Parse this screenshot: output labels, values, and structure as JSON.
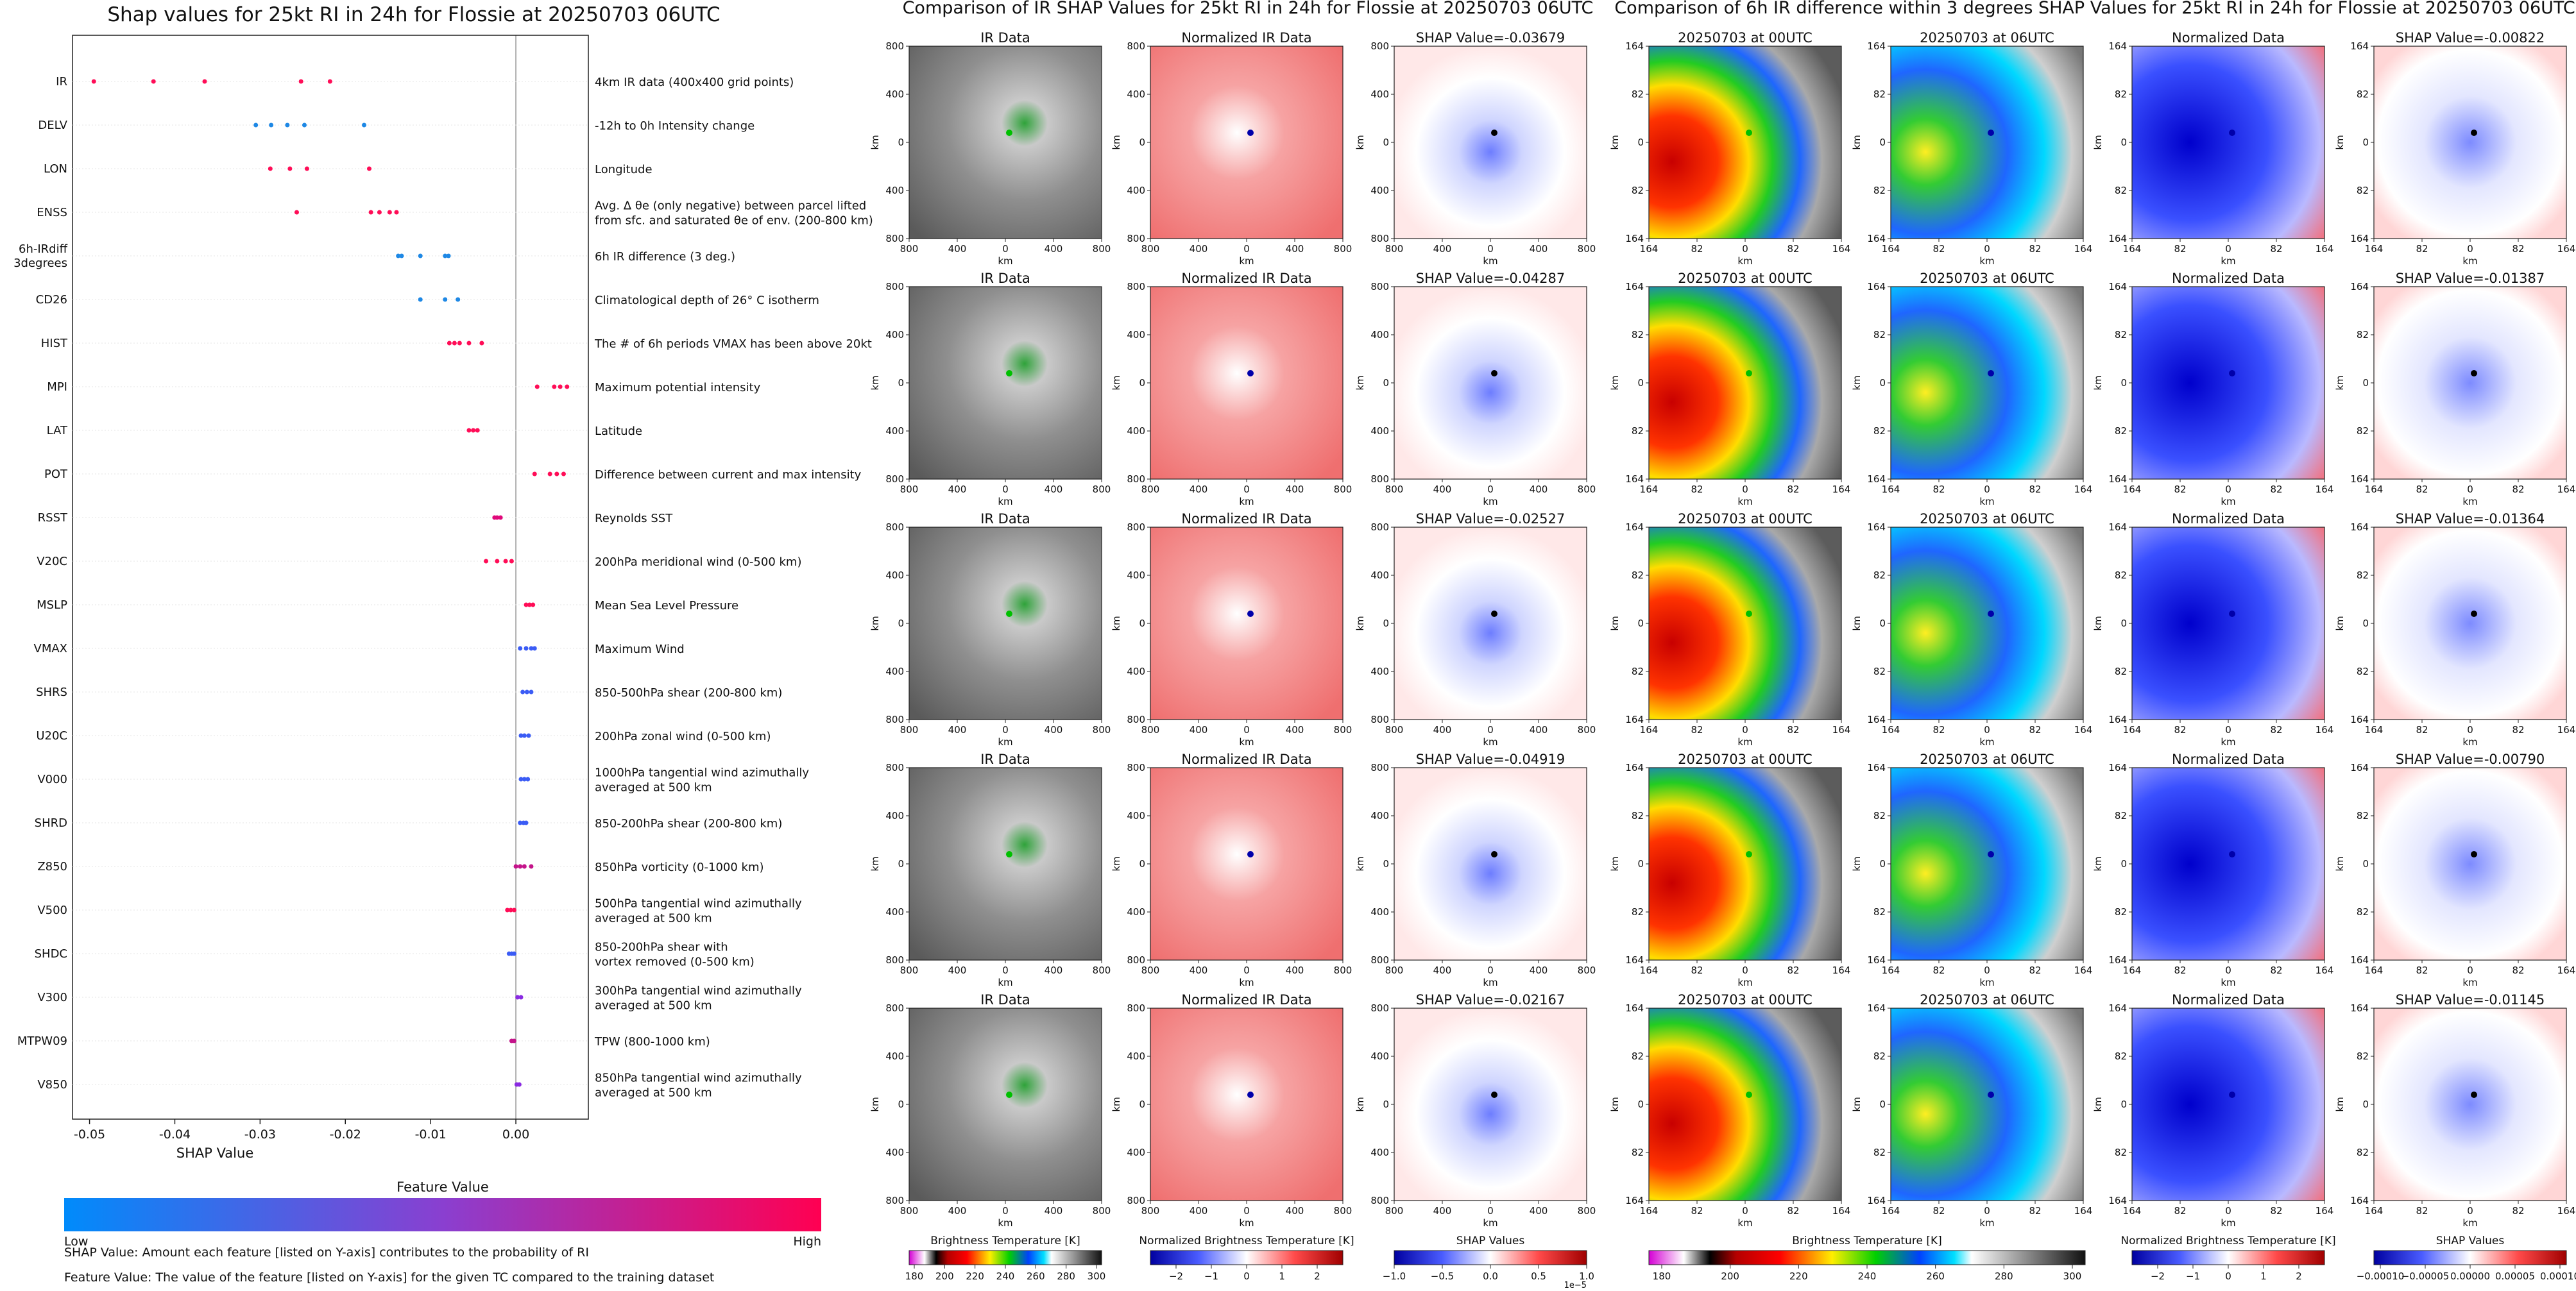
{
  "shap_panel": {
    "title": "Shap values for 25kt RI in 24h for Flossie at 20250703 06UTC",
    "xlabel": "SHAP Value",
    "colorbar": {
      "title": "Feature Value",
      "low": "Low",
      "high": "High"
    },
    "footnotes": [
      "SHAP Value: Amount each feature [listed on Y-axis] contributes to the probability of RI",
      "Feature Value: The value of the feature [listed on Y-axis] for the given TC compared to the training dataset"
    ]
  },
  "chart_data": [
    {
      "type": "scatter",
      "title": "Shap values for 25kt RI in 24h for Flossie at 20250703 06UTC",
      "xlabel": "SHAP Value",
      "xlim": [
        -0.052,
        0.0085
      ],
      "xticks": [
        "-0.05",
        "-0.04",
        "-0.03",
        "-0.02",
        "-0.01",
        "0.00"
      ],
      "xtick_values": [
        -0.05,
        -0.04,
        -0.03,
        -0.02,
        -0.01,
        0.0
      ],
      "colors": {
        "low": "#1e88e5",
        "high": "#ff0d57"
      },
      "features": [
        {
          "name": "IR",
          "desc": "4km IR data (400x400 grid points)",
          "vals": [
            -0.0495,
            -0.0425,
            -0.0365,
            -0.0252,
            -0.0218
          ],
          "color": "#ff0d57"
        },
        {
          "name": "DELV",
          "desc": "-12h to 0h Intensity change",
          "vals": [
            -0.0305,
            -0.0287,
            -0.0268,
            -0.0248,
            -0.0178
          ],
          "color": "#1e88e5"
        },
        {
          "name": "LON",
          "desc": "Longitude",
          "vals": [
            -0.0288,
            -0.0265,
            -0.0245,
            -0.0172
          ],
          "color": "#ff0d57"
        },
        {
          "name": "ENSS",
          "desc": "Avg. Δ θe (only negative) between parcel lifted\nfrom sfc. and saturated θe of env. (200-800 km)",
          "vals": [
            -0.0257,
            -0.017,
            -0.016,
            -0.0148,
            -0.014
          ],
          "color": "#ff0d57"
        },
        {
          "name": "6h-IRdiff\n3degrees",
          "desc": "6h IR difference (3 deg.)",
          "vals": [
            -0.0138,
            -0.0134,
            -0.0112,
            -0.0083,
            -0.0079
          ],
          "color": "#1e88e5"
        },
        {
          "name": "CD26",
          "desc": "Climatological depth of 26° C isotherm",
          "vals": [
            -0.0112,
            -0.0083,
            -0.0068
          ],
          "color": "#1e88e5"
        },
        {
          "name": "HIST",
          "desc": "The # of 6h periods VMAX has been above 20kt",
          "vals": [
            -0.0078,
            -0.0072,
            -0.0066,
            -0.0055,
            -0.004
          ],
          "color": "#ff0d57"
        },
        {
          "name": "MPI",
          "desc": "Maximum potential intensity",
          "vals": [
            0.0025,
            0.0045,
            0.0052,
            0.006
          ],
          "color": "#ff0d57"
        },
        {
          "name": "LAT",
          "desc": "Latitude",
          "vals": [
            -0.0055,
            -0.005,
            -0.0045
          ],
          "color": "#ff0d57"
        },
        {
          "name": "POT",
          "desc": "Difference between current and max intensity",
          "vals": [
            0.0022,
            0.004,
            0.0048,
            0.0056
          ],
          "color": "#ff0d57"
        },
        {
          "name": "RSST",
          "desc": "Reynolds SST",
          "vals": [
            -0.0025,
            -0.0022,
            -0.0018
          ],
          "color": "#e0087a"
        },
        {
          "name": "V20C",
          "desc": "200hPa meridional wind (0-500 km)",
          "vals": [
            -0.0035,
            -0.0022,
            -0.0012,
            -0.0005
          ],
          "color": "#ff0d57"
        },
        {
          "name": "MSLP",
          "desc": "Mean Sea Level Pressure",
          "vals": [
            0.0012,
            0.0016,
            0.002
          ],
          "color": "#ff0d57"
        },
        {
          "name": "VMAX",
          "desc": "Maximum Wind",
          "vals": [
            0.0005,
            0.0012,
            0.0018,
            0.0022
          ],
          "color": "#3b5cf5"
        },
        {
          "name": "SHRS",
          "desc": "850-500hPa shear (200-800 km)",
          "vals": [
            0.0008,
            0.0013,
            0.0018
          ],
          "color": "#3b5cf5"
        },
        {
          "name": "U20C",
          "desc": "200hPa zonal wind (0-500 km)",
          "vals": [
            0.0006,
            0.001,
            0.0015
          ],
          "color": "#3b5cf5"
        },
        {
          "name": "V000",
          "desc": "1000hPa tangential wind azimuthally\naveraged at 500 km",
          "vals": [
            0.0006,
            0.001,
            0.0014
          ],
          "color": "#3b5cf5"
        },
        {
          "name": "SHRD",
          "desc": "850-200hPa shear (200-800 km)",
          "vals": [
            0.0005,
            0.0009,
            0.0012
          ],
          "color": "#3b5cf5"
        },
        {
          "name": "Z850",
          "desc": "850hPa vorticity (0-1000 km)",
          "vals": [
            0.0,
            0.0005,
            0.001,
            0.0018
          ],
          "color": "#c4148a"
        },
        {
          "name": "V500",
          "desc": "500hPa tangential wind azimuthally\naveraged at 500 km",
          "vals": [
            -0.001,
            -0.0006,
            -0.0002
          ],
          "color": "#ff0d57"
        },
        {
          "name": "SHDC",
          "desc": "850-200hPa shear with\nvortex removed (0-500 km)",
          "vals": [
            -0.0008,
            -0.0005,
            -0.0002
          ],
          "color": "#3b5cf5"
        },
        {
          "name": "V300",
          "desc": "300hPa tangential wind azimuthally\naveraged at 500 km",
          "vals": [
            0.0002,
            0.0006
          ],
          "color": "#8a2be2"
        },
        {
          "name": "MTPW09",
          "desc": "TPW (800-1000 km)",
          "vals": [
            -0.0005,
            -0.0002
          ],
          "color": "#c4148a"
        },
        {
          "name": "V850",
          "desc": "850hPa tangential wind azimuthally\naveraged at 500 km",
          "vals": [
            0.0001,
            0.0004
          ],
          "color": "#8a2be2"
        }
      ]
    }
  ],
  "ir_group": {
    "title": "Comparison of IR SHAP Values for 25kt RI in 24h for Flossie at 20250703 06UTC",
    "col_titles": [
      "IR Data",
      "Normalized IR Data"
    ],
    "shap_titles": [
      "SHAP Value=-0.03679",
      "SHAP Value=-0.04287",
      "SHAP Value=-0.02527",
      "SHAP Value=-0.04919",
      "SHAP Value=-0.02167"
    ],
    "axis_label": "km",
    "yticks": [
      "800",
      "400",
      "0",
      "400",
      "800"
    ],
    "xticks": [
      "800",
      "400",
      "0",
      "400",
      "800"
    ],
    "colorbars": [
      {
        "label": "Brightness Temperature [K]",
        "ticks": [
          "180",
          "200",
          "220",
          "240",
          "260",
          "280",
          "300"
        ]
      },
      {
        "label": "Normalized Brightness Temperature [K]",
        "ticks": [
          "−2",
          "−1",
          "0",
          "1",
          "2"
        ]
      },
      {
        "label": "SHAP Values",
        "ticks": [
          "−1.0",
          "−0.5",
          "0.0",
          "0.5",
          "1.0"
        ],
        "exponent": "1e−5"
      }
    ]
  },
  "diff_group": {
    "title": "Comparison of 6h IR difference within 3 degrees SHAP Values for 25kt RI in 24h for Flossie at 20250703 06UTC",
    "col_titles": [
      "20250703 at 00UTC",
      "20250703 at 06UTC",
      "Normalized Data"
    ],
    "shap_titles": [
      "SHAP Value=-0.00822",
      "SHAP Value=-0.01387",
      "SHAP Value=-0.01364",
      "SHAP Value=-0.00790",
      "SHAP Value=-0.01145"
    ],
    "axis_label": "km",
    "yticks": [
      "164",
      "82",
      "0",
      "82",
      "164"
    ],
    "xticks": [
      "164",
      "82",
      "0",
      "82",
      "164"
    ],
    "colorbars": [
      {
        "label": "Brightness Temperature [K]",
        "ticks": [
          "180",
          "200",
          "220",
          "240",
          "260",
          "280",
          "300"
        ]
      },
      {
        "label": "Normalized Brightness Temperature [K]",
        "ticks": [
          "−2",
          "−1",
          "0",
          "1",
          "2"
        ]
      },
      {
        "label": "SHAP Values",
        "ticks": [
          "−0.00010",
          "−0.00005",
          "0.00000",
          "0.00005",
          "0.00010"
        ]
      }
    ]
  }
}
